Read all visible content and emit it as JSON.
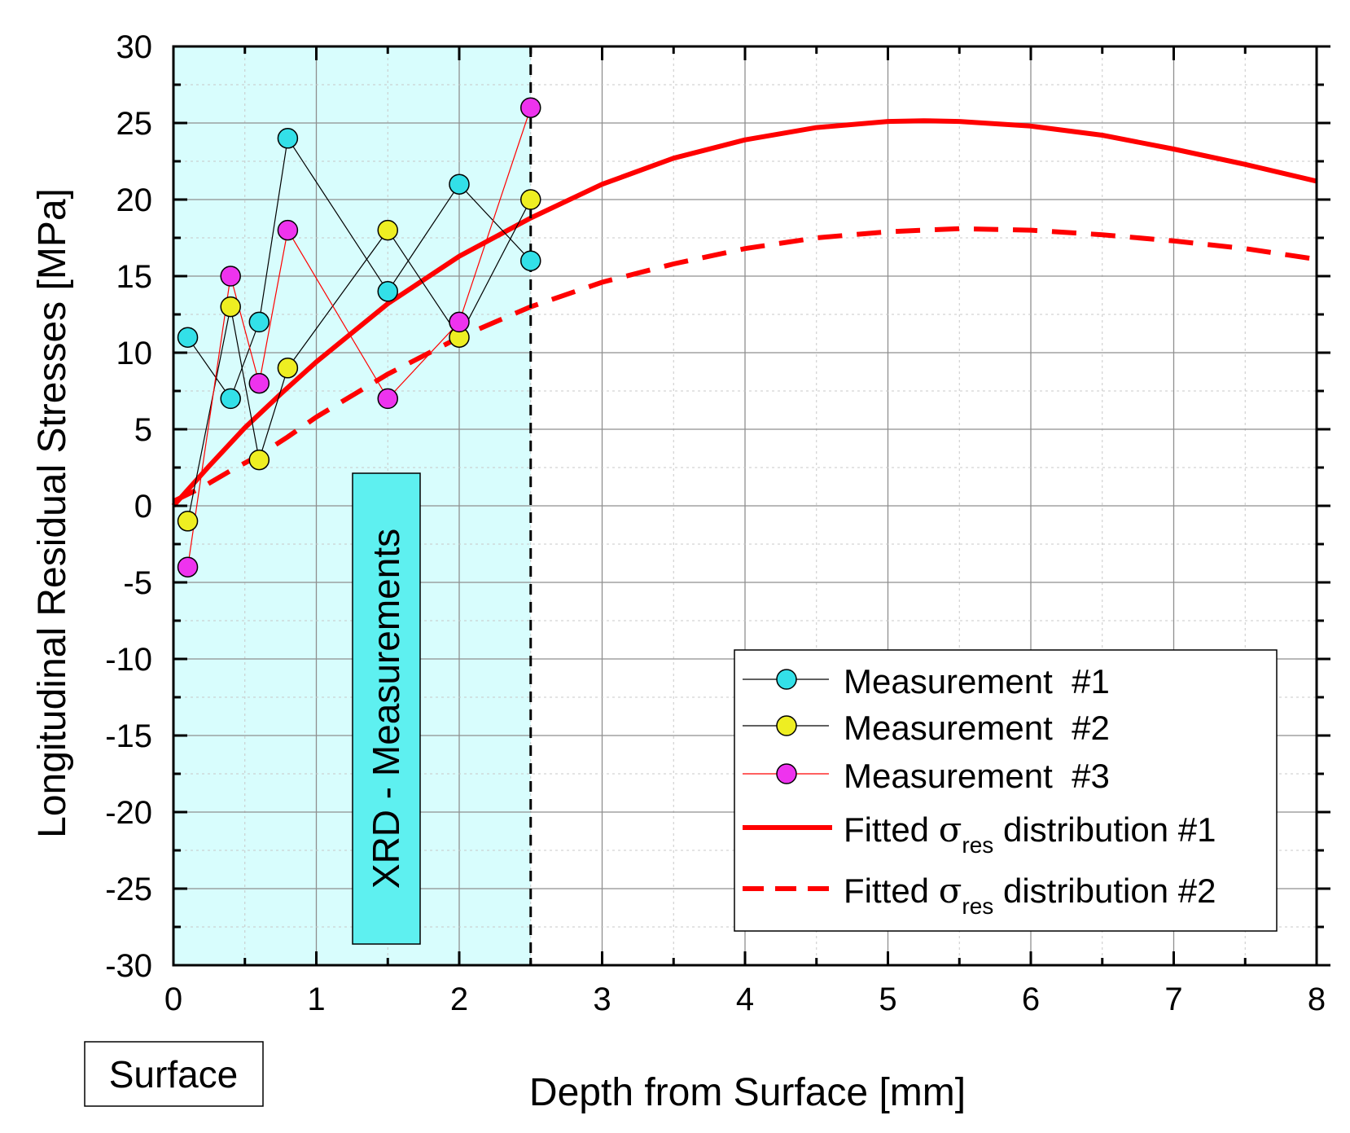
{
  "chart_data": {
    "type": "line",
    "title": "",
    "xlabel": "Depth from Surface [mm]",
    "ylabel": "Longitudinal Residual Stresses [MPa]",
    "xlim": [
      0,
      8
    ],
    "ylim": [
      -30,
      30
    ],
    "xticks": [
      0,
      1,
      2,
      3,
      4,
      5,
      6,
      7,
      8
    ],
    "yticks": [
      -30,
      -25,
      -20,
      -15,
      -10,
      -5,
      0,
      5,
      10,
      15,
      20,
      25,
      30
    ],
    "grid": true,
    "shaded_region": {
      "x0": 0,
      "x1": 2.5,
      "color": "#d8fdfd",
      "label": "XRD - Measurements"
    },
    "boundary_line": {
      "x": 2.5,
      "style": "dashed",
      "color": "#000000"
    },
    "surface_label": "Surface",
    "series": [
      {
        "name": "Measurement  #1",
        "kind": "markers",
        "marker_color": "#33e0e8",
        "line_color": "#000000",
        "x": [
          0.1,
          0.4,
          0.6,
          0.8,
          1.5,
          2.0,
          2.5
        ],
        "y": [
          11,
          7,
          12,
          24,
          14,
          21,
          16
        ]
      },
      {
        "name": "Measurement  #2",
        "kind": "markers",
        "marker_color": "#eeee22",
        "line_color": "#000000",
        "x": [
          0.1,
          0.4,
          0.6,
          0.8,
          1.5,
          2.0,
          2.5
        ],
        "y": [
          -1,
          13,
          3,
          9,
          18,
          11,
          20
        ]
      },
      {
        "name": "Measurement  #3",
        "kind": "markers",
        "marker_color": "#ee33ee",
        "line_color": "#ff0000",
        "x": [
          0.1,
          0.4,
          0.6,
          0.8,
          1.5,
          2.0,
          2.5
        ],
        "y": [
          -4,
          15,
          8,
          18,
          7,
          12,
          26
        ]
      },
      {
        "name_prefix": "Fitted ",
        "symbol": "σ",
        "subscript": "res",
        "name_suffix": " distribution #1",
        "kind": "solid",
        "line_color": "#ff0000",
        "x": [
          0,
          0.25,
          0.5,
          0.75,
          1,
          1.5,
          2,
          2.5,
          3,
          3.5,
          4,
          4.5,
          5,
          5.25,
          5.5,
          6,
          6.5,
          7,
          7.5,
          8
        ],
        "y": [
          0,
          2.6,
          5.1,
          7.3,
          9.4,
          13.2,
          16.3,
          18.8,
          21.0,
          22.7,
          23.9,
          24.7,
          25.1,
          25.15,
          25.1,
          24.8,
          24.2,
          23.3,
          22.3,
          21.2
        ]
      },
      {
        "name_prefix": "Fitted ",
        "symbol": "σ",
        "subscript": "res",
        "name_suffix": " distribution #2",
        "kind": "dashed",
        "line_color": "#ff0000",
        "x": [
          0,
          0.2,
          0.4,
          0.6,
          0.8,
          1,
          1.5,
          2,
          2.5,
          3,
          3.5,
          4,
          4.5,
          5,
          5.5,
          6,
          6.5,
          7,
          7.5,
          8
        ],
        "y": [
          0.3,
          1.2,
          2.3,
          3.3,
          4.5,
          5.8,
          8.6,
          11.0,
          13.0,
          14.6,
          15.8,
          16.8,
          17.5,
          17.9,
          18.1,
          18.0,
          17.7,
          17.3,
          16.8,
          16.1
        ]
      }
    ],
    "legend_position": "bottom-right"
  }
}
